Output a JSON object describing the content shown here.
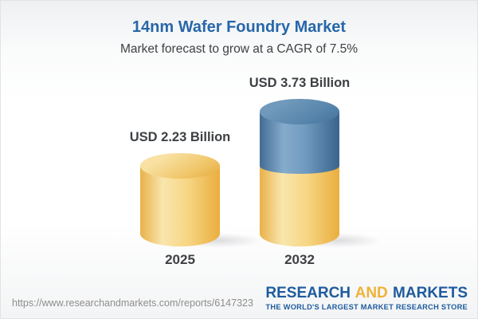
{
  "header": {
    "title": "14nm Wafer Foundry Market",
    "subtitle": "Market forecast to grow at a CAGR of 7.5%"
  },
  "chart_data": {
    "type": "bar",
    "variant": "3d-cylinder",
    "title": "14nm Wafer Foundry Market",
    "subtitle": "Market forecast to grow at a CAGR of 7.5%",
    "cagr_percent": 7.5,
    "unit": "USD Billion",
    "categories": [
      "2025",
      "2032"
    ],
    "values": [
      2.23,
      3.73
    ],
    "value_labels": [
      "USD 2.23 Billion",
      "USD 3.73 Billion"
    ],
    "ylim": [
      0,
      3.73
    ],
    "grid": false,
    "legend": "none",
    "bars": [
      {
        "category": "2025",
        "value": 2.23,
        "label": "USD 2.23 Billion",
        "segments": [
          {
            "value": 2.23,
            "color": "yellow"
          }
        ]
      },
      {
        "category": "2032",
        "value": 3.73,
        "label": "USD 3.73 Billion",
        "segments": [
          {
            "value": 2.23,
            "color": "yellow"
          },
          {
            "value": 1.5,
            "color": "blue"
          }
        ]
      }
    ],
    "colors": {
      "yellow": "#f2c96b",
      "blue": "#5585ad"
    }
  },
  "footer": {
    "url": "https://www.researchandmarkets.com/reports/6147323",
    "logo": {
      "word1": "RESEARCH",
      "word2": "AND",
      "word3": "MARKETS",
      "tagline": "THE WORLD'S LARGEST MARKET RESEARCH STORE",
      "brand_blue": "#1e5b9e",
      "brand_gold": "#efb238"
    }
  },
  "theme": {
    "title_color": "#2767a9",
    "text_color": "#3d4144",
    "url_color": "#8d8d8d"
  }
}
